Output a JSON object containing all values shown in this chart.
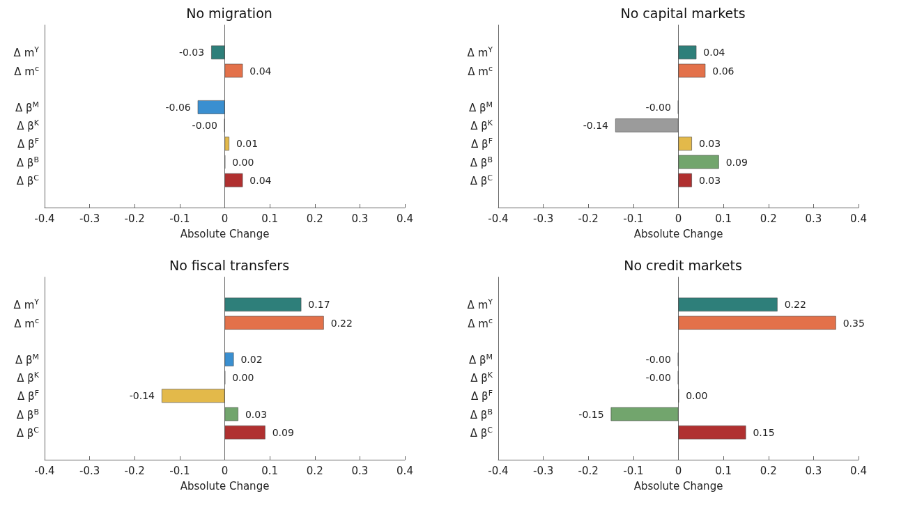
{
  "chart_data": [
    {
      "type": "bar",
      "orientation": "horizontal",
      "title": "No migration",
      "xlabel": "Absolute Change",
      "categories": [
        null,
        "Δ m$^{Y}$",
        "Δ m$^{c}$",
        null,
        "Δ β$^{M}$",
        "Δ β$^{K}$",
        "Δ β$^{F}$",
        "Δ β$^{B}$",
        "Δ β$^{C}$",
        null
      ],
      "values": [
        null,
        -0.03,
        0.04,
        null,
        -0.06,
        -0.001,
        0.01,
        0.001,
        0.04,
        null
      ],
      "value_labels": [
        null,
        "-0.03",
        "0.04",
        null,
        "-0.06",
        "-0.00",
        "0.01",
        "0.00",
        "0.04",
        null
      ],
      "colors": [
        null,
        "#2e7f7a",
        "#e3714a",
        null,
        "#3a8fd0",
        "#9b9b9b",
        "#e3b94a",
        "#72a56d",
        "#b03030",
        null
      ],
      "xlim": [
        -0.4,
        0.4
      ],
      "xticks": [
        -0.4,
        -0.3,
        -0.2,
        -0.1,
        0,
        0.1,
        0.2,
        0.3,
        0.4
      ]
    },
    {
      "type": "bar",
      "orientation": "horizontal",
      "title": "No capital markets",
      "xlabel": "Absolute Change",
      "categories": [
        null,
        "Δ m$^{Y}$",
        "Δ m$^{c}$",
        null,
        "Δ β$^{M}$",
        "Δ β$^{K}$",
        "Δ β$^{F}$",
        "Δ β$^{B}$",
        "Δ β$^{C}$",
        null
      ],
      "values": [
        null,
        0.04,
        0.06,
        null,
        -0.001,
        -0.14,
        0.03,
        0.09,
        0.03,
        null
      ],
      "value_labels": [
        null,
        "0.04",
        "0.06",
        null,
        "-0.00",
        "-0.14",
        "0.03",
        "0.09",
        "0.03",
        null
      ],
      "colors": [
        null,
        "#2e7f7a",
        "#e3714a",
        null,
        "#3a8fd0",
        "#9b9b9b",
        "#e3b94a",
        "#72a56d",
        "#b03030",
        null
      ],
      "xlim": [
        -0.4,
        0.4
      ],
      "xticks": [
        -0.4,
        -0.3,
        -0.2,
        -0.1,
        0,
        0.1,
        0.2,
        0.3,
        0.4
      ]
    },
    {
      "type": "bar",
      "orientation": "horizontal",
      "title": "No fiscal transfers",
      "xlabel": "Absolute Change",
      "categories": [
        null,
        "Δ m$^{Y}$",
        "Δ m$^{c}$",
        null,
        "Δ β$^{M}$",
        "Δ β$^{K}$",
        "Δ β$^{F}$",
        "Δ β$^{B}$",
        "Δ β$^{C}$",
        null
      ],
      "values": [
        null,
        0.17,
        0.22,
        null,
        0.02,
        0.001,
        -0.14,
        0.03,
        0.09,
        null
      ],
      "value_labels": [
        null,
        "0.17",
        "0.22",
        null,
        "0.02",
        "0.00",
        "-0.14",
        "0.03",
        "0.09",
        null
      ],
      "colors": [
        null,
        "#2e7f7a",
        "#e3714a",
        null,
        "#3a8fd0",
        "#9b9b9b",
        "#e3b94a",
        "#72a56d",
        "#b03030",
        null
      ],
      "xlim": [
        -0.4,
        0.4
      ],
      "xticks": [
        -0.4,
        -0.3,
        -0.2,
        -0.1,
        0,
        0.1,
        0.2,
        0.3,
        0.4
      ]
    },
    {
      "type": "bar",
      "orientation": "horizontal",
      "title": "No credit markets",
      "xlabel": "Absolute Change",
      "categories": [
        null,
        "Δ m$^{Y}$",
        "Δ m$^{c}$",
        null,
        "Δ β$^{M}$",
        "Δ β$^{K}$",
        "Δ β$^{F}$",
        "Δ β$^{B}$",
        "Δ β$^{C}$",
        null
      ],
      "values": [
        null,
        0.22,
        0.35,
        null,
        -0.001,
        -0.001,
        0.001,
        -0.15,
        0.15,
        null
      ],
      "value_labels": [
        null,
        "0.22",
        "0.35",
        null,
        "-0.00",
        "-0.00",
        "0.00",
        "-0.15",
        "0.15",
        null
      ],
      "colors": [
        null,
        "#2e7f7a",
        "#e3714a",
        null,
        "#3a8fd0",
        "#9b9b9b",
        "#e3b94a",
        "#72a56d",
        "#b03030",
        null
      ],
      "xlim": [
        -0.4,
        0.4
      ],
      "xticks": [
        -0.4,
        -0.3,
        -0.2,
        -0.1,
        0,
        0.1,
        0.2,
        0.3,
        0.4
      ]
    }
  ]
}
